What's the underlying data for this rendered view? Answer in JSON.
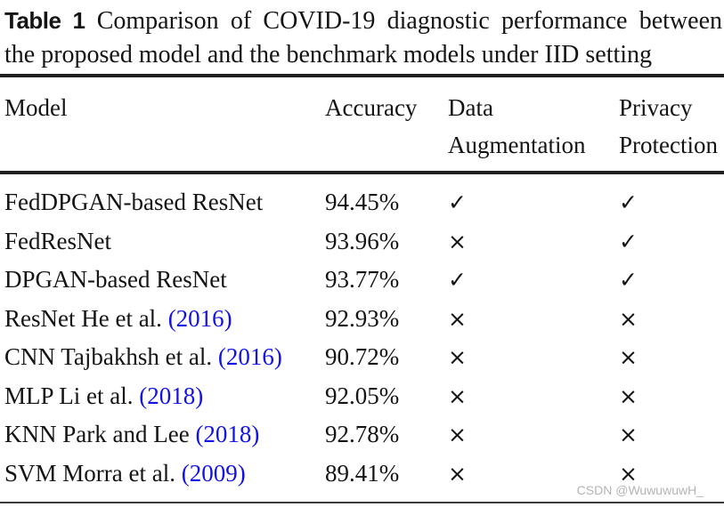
{
  "title": {
    "label": "Table 1",
    "line1": "Comparison of COVID-19 diagnostic performance between",
    "line2": "the proposed model and the benchmark models under IID setting"
  },
  "table": {
    "header": [
      {
        "line1": "Model",
        "line2": ""
      },
      {
        "line1": "Accuracy",
        "line2": ""
      },
      {
        "line1": "Data",
        "line2": "Augmentation"
      },
      {
        "line1": "Privacy",
        "line2": "Protection"
      }
    ],
    "rows": [
      {
        "model": [
          {
            "t": "FedDPGAN-based ResNet"
          }
        ],
        "accuracy": "94.45%",
        "data_augmentation": "check",
        "privacy_protection": "check"
      },
      {
        "model": [
          {
            "t": "FedResNet"
          }
        ],
        "accuracy": "93.96%",
        "data_augmentation": "cross",
        "privacy_protection": "check"
      },
      {
        "model": [
          {
            "t": "DPGAN-based ResNet"
          }
        ],
        "accuracy": "93.77%",
        "data_augmentation": "check",
        "privacy_protection": "check"
      },
      {
        "model": [
          {
            "t": "ResNet He et al. "
          },
          {
            "t": "(2016)",
            "link": true
          }
        ],
        "accuracy": "92.93%",
        "data_augmentation": "cross",
        "privacy_protection": "cross"
      },
      {
        "model": [
          {
            "t": "CNN Tajbakhsh et al. "
          },
          {
            "t": "(2016)",
            "link": true
          }
        ],
        "accuracy": "90.72%",
        "data_augmentation": "cross",
        "privacy_protection": "cross"
      },
      {
        "model": [
          {
            "t": "MLP Li et al. "
          },
          {
            "t": "(2018)",
            "link": true
          }
        ],
        "accuracy": "92.05%",
        "data_augmentation": "cross",
        "privacy_protection": "cross"
      },
      {
        "model": [
          {
            "t": "KNN Park and Lee "
          },
          {
            "t": "(2018)",
            "link": true
          }
        ],
        "accuracy": "92.78%",
        "data_augmentation": "cross",
        "privacy_protection": "cross"
      },
      {
        "model": [
          {
            "t": "SVM Morra et al. "
          },
          {
            "t": "(2009)",
            "link": true
          }
        ],
        "accuracy": "89.41%",
        "data_augmentation": "cross",
        "privacy_protection": "cross"
      }
    ]
  },
  "symbols": {
    "check": "✓",
    "cross": "×"
  },
  "watermark": "CSDN @WuwuwuwH_",
  "colors": {
    "text": "#141414",
    "link_blue": "#1212e6",
    "rule": "#1f1f1f",
    "rule_bottom": "#3c3c3c",
    "watermark_gray": "#b4b4b4",
    "background": "#ffffff"
  }
}
